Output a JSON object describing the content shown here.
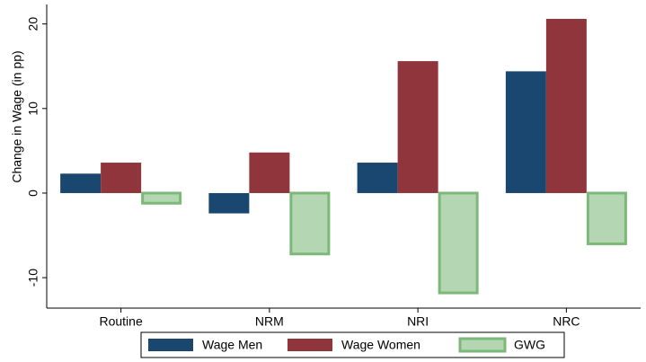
{
  "chart_data": {
    "type": "bar",
    "y_label": "Change in Wage (in pp)",
    "categories": [
      "Routine",
      "NRM",
      "NRI",
      "NRC"
    ],
    "series": [
      {
        "name": "Wage Men",
        "color": "#1a476f",
        "values": [
          2.3,
          -2.4,
          3.6,
          14.4
        ]
      },
      {
        "name": "Wage Women",
        "color": "#90353b",
        "values": [
          3.6,
          4.8,
          15.6,
          20.6
        ]
      },
      {
        "name": "GWG",
        "color": "#b5d6b2",
        "edge_color": "#7cb878",
        "values": [
          -1.2,
          -7.2,
          -11.8,
          -6.0
        ]
      }
    ],
    "ylim": [
      -13.6,
      22.3
    ],
    "yticks": [
      -10,
      0,
      10,
      20
    ],
    "grid": false,
    "legend": "bottom"
  }
}
